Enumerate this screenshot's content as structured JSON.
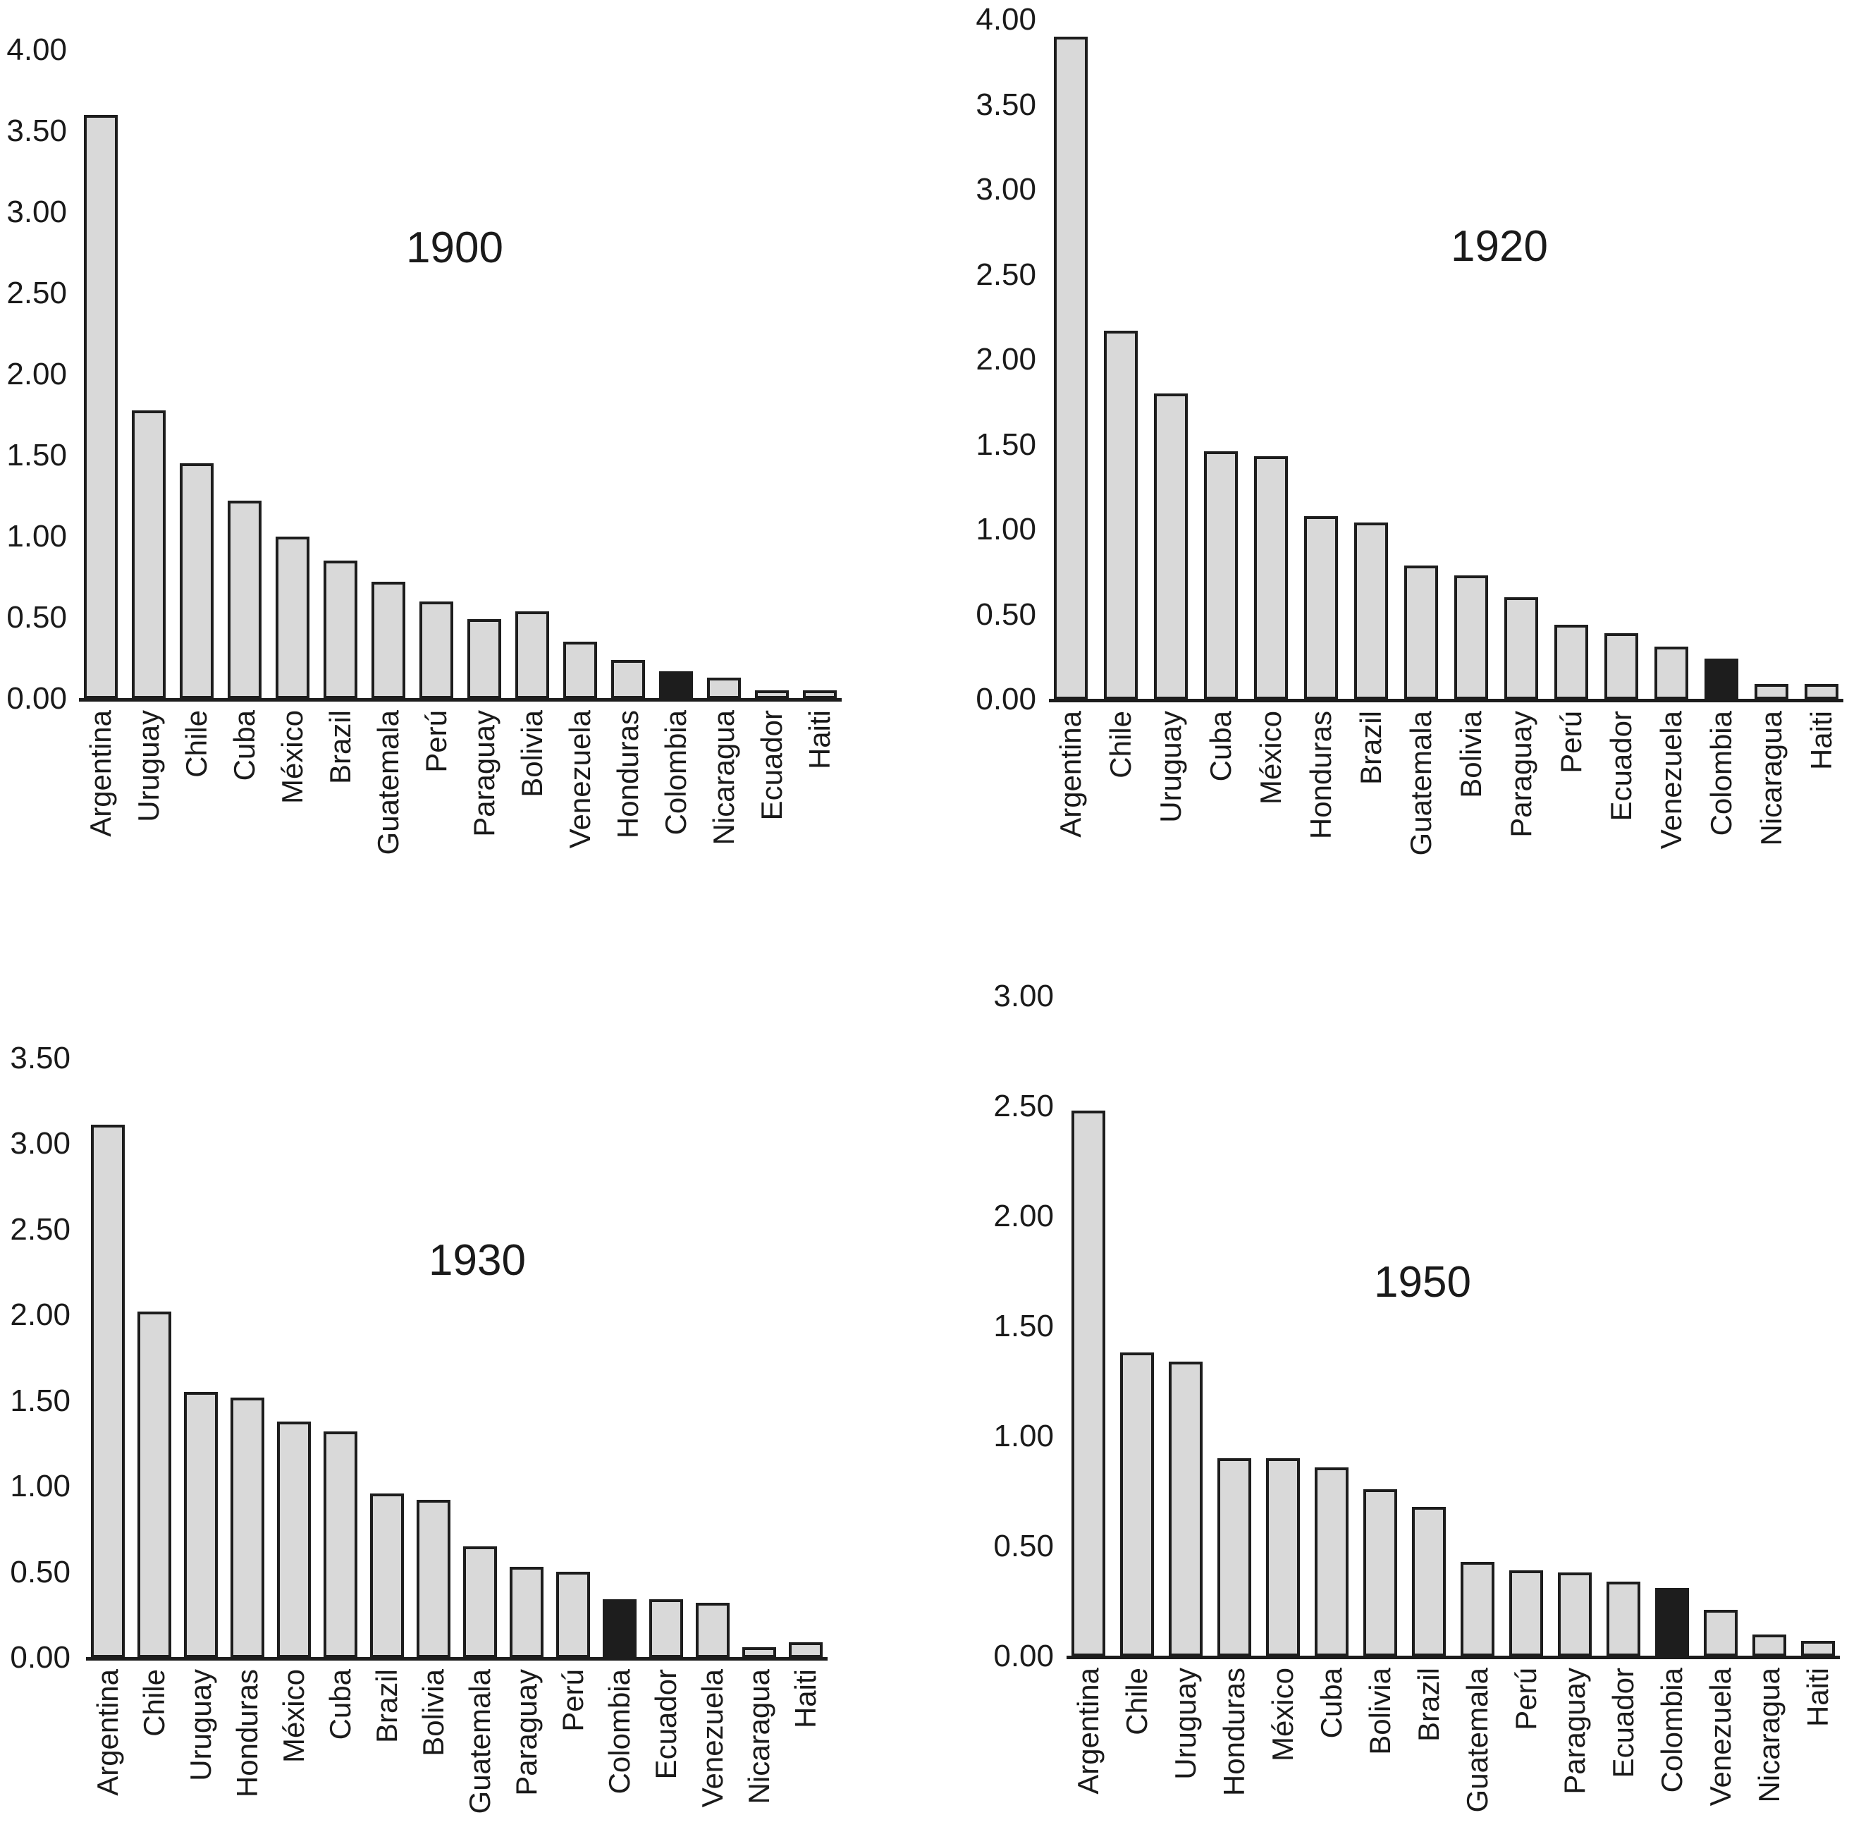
{
  "figure": {
    "background": "#ffffff",
    "bar_fill": "#d9d9d9",
    "bar_stroke": "#1d1d1d",
    "highlight_fill": "#1d1d1d",
    "highlight_category": "Colombia",
    "text_color": "#1a1a1a"
  },
  "chart_data": [
    {
      "type": "bar",
      "title": "1900",
      "categories": [
        "Argentina",
        "Uruguay",
        "Chile",
        "Cuba",
        "México",
        "Brazil",
        "Guatemala",
        "Perú",
        "Paraguay",
        "Bolivia",
        "Venezuela",
        "Honduras",
        "Colombia",
        "Nicaragua",
        "Ecuador",
        "Haiti"
      ],
      "values": [
        3.6,
        1.78,
        1.45,
        1.22,
        1.0,
        0.85,
        0.72,
        0.6,
        0.49,
        0.54,
        0.35,
        0.24,
        0.17,
        0.13,
        0.05,
        0.05
      ],
      "highlight": "Colombia",
      "xlabel": "",
      "ylabel": "",
      "ylim": [
        0,
        4.0
      ],
      "ytick_step": 0.5,
      "ytick_labels": [
        "4.00",
        "3.50",
        "3.00",
        "2.50",
        "2.00",
        "1.50",
        "1.00",
        "0.50",
        "0.00"
      ],
      "grid": false,
      "legend": "none"
    },
    {
      "type": "bar",
      "title": "1920",
      "categories": [
        "Argentina",
        "Chile",
        "Uruguay",
        "Cuba",
        "México",
        "Honduras",
        "Brazil",
        "Guatemala",
        "Bolivia",
        "Paraguay",
        "Perú",
        "Ecuador",
        "Venezuela",
        "Colombia",
        "Nicaragua",
        "Haiti"
      ],
      "values": [
        3.9,
        2.17,
        1.8,
        1.46,
        1.43,
        1.08,
        1.04,
        0.79,
        0.73,
        0.6,
        0.44,
        0.39,
        0.31,
        0.24,
        0.09,
        0.09
      ],
      "highlight": "Colombia",
      "xlabel": "",
      "ylabel": "",
      "ylim": [
        0,
        4.0
      ],
      "ytick_step": 0.5,
      "ytick_labels": [
        "4.00",
        "3.50",
        "3.00",
        "2.50",
        "2.00",
        "1.50",
        "1.00",
        "0.50",
        "0.00"
      ],
      "grid": false,
      "legend": "none"
    },
    {
      "type": "bar",
      "title": "1930",
      "categories": [
        "Argentina",
        "Chile",
        "Uruguay",
        "Honduras",
        "México",
        "Cuba",
        "Brazil",
        "Bolivia",
        "Guatemala",
        "Paraguay",
        "Perú",
        "Colombia",
        "Ecuador",
        "Venezuela",
        "Nicaragua",
        "Haiti"
      ],
      "values": [
        3.11,
        2.02,
        1.55,
        1.52,
        1.38,
        1.32,
        0.96,
        0.92,
        0.65,
        0.53,
        0.5,
        0.34,
        0.34,
        0.32,
        0.06,
        0.09
      ],
      "highlight": "Colombia",
      "xlabel": "",
      "ylabel": "",
      "ylim": [
        0,
        3.5
      ],
      "ytick_step": 0.5,
      "ytick_labels": [
        "3.50",
        "3.00",
        "2.50",
        "2.00",
        "1.50",
        "1.00",
        "0.50",
        "0.00"
      ],
      "grid": false,
      "legend": "none"
    },
    {
      "type": "bar",
      "title": "1950",
      "categories": [
        "Argentina",
        "Chile",
        "Uruguay",
        "Honduras",
        "México",
        "Cuba",
        "Bolivia",
        "Brazil",
        "Guatemala",
        "Perú",
        "Paraguay",
        "Ecuador",
        "Colombia",
        "Venezuela",
        "Nicaragua",
        "Haiti"
      ],
      "values": [
        2.48,
        1.38,
        1.34,
        0.9,
        0.9,
        0.86,
        0.76,
        0.68,
        0.43,
        0.39,
        0.38,
        0.34,
        0.31,
        0.21,
        0.1,
        0.07
      ],
      "highlight": "Colombia",
      "xlabel": "",
      "ylabel": "",
      "ylim": [
        0,
        3.0
      ],
      "ytick_step": 0.5,
      "ytick_labels": [
        "3.00",
        "2.50",
        "2.00",
        "1.50",
        "1.00",
        "0.50",
        "0.00"
      ],
      "grid": false,
      "legend": "none"
    }
  ]
}
